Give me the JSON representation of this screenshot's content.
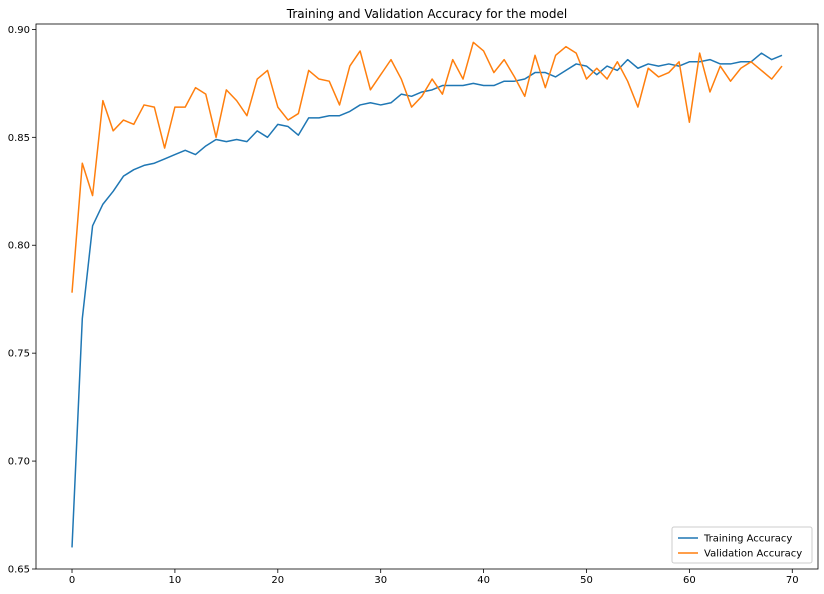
{
  "chart_data": {
    "type": "line",
    "title": "Training and Validation Accuracy for the model",
    "xlabel": "",
    "ylabel": "",
    "xlim": [
      -3.5,
      72.5
    ],
    "ylim": [
      0.65,
      0.9025
    ],
    "x_ticks": [
      0,
      10,
      20,
      30,
      40,
      50,
      60,
      70
    ],
    "y_ticks": [
      0.65,
      0.7,
      0.75,
      0.8,
      0.85,
      0.9
    ],
    "y_tick_labels": [
      "0.65",
      "0.70",
      "0.75",
      "0.80",
      "0.85",
      "0.90"
    ],
    "grid": false,
    "legend_position": "lower right",
    "series": [
      {
        "name": "Training Accuracy",
        "color": "#1f77b4",
        "values": [
          0.66,
          0.766,
          0.809,
          0.819,
          0.825,
          0.832,
          0.835,
          0.837,
          0.838,
          0.84,
          0.842,
          0.844,
          0.842,
          0.846,
          0.849,
          0.848,
          0.849,
          0.848,
          0.853,
          0.85,
          0.856,
          0.855,
          0.851,
          0.859,
          0.859,
          0.86,
          0.86,
          0.862,
          0.865,
          0.866,
          0.865,
          0.866,
          0.87,
          0.869,
          0.871,
          0.872,
          0.874,
          0.874,
          0.874,
          0.875,
          0.874,
          0.874,
          0.876,
          0.876,
          0.877,
          0.88,
          0.88,
          0.878,
          0.881,
          0.884,
          0.883,
          0.879,
          0.883,
          0.881,
          0.886,
          0.882,
          0.884,
          0.883,
          0.884,
          0.883,
          0.885,
          0.885,
          0.886,
          0.884,
          0.884,
          0.885,
          0.885,
          0.889,
          0.886,
          0.888
        ]
      },
      {
        "name": "Validation Accuracy",
        "color": "#ff7f0e",
        "values": [
          0.778,
          0.838,
          0.823,
          0.867,
          0.853,
          0.858,
          0.856,
          0.865,
          0.864,
          0.845,
          0.864,
          0.864,
          0.873,
          0.87,
          0.85,
          0.872,
          0.867,
          0.86,
          0.877,
          0.881,
          0.864,
          0.858,
          0.861,
          0.881,
          0.877,
          0.876,
          0.865,
          0.883,
          0.89,
          0.872,
          0.879,
          0.886,
          0.877,
          0.864,
          0.869,
          0.877,
          0.87,
          0.886,
          0.877,
          0.894,
          0.89,
          0.88,
          0.886,
          0.878,
          0.869,
          0.888,
          0.873,
          0.888,
          0.892,
          0.889,
          0.877,
          0.882,
          0.877,
          0.885,
          0.876,
          0.864,
          0.882,
          0.878,
          0.88,
          0.885,
          0.857,
          0.889,
          0.871,
          0.883,
          0.876,
          0.882,
          0.885,
          0.881,
          0.877,
          0.883
        ]
      }
    ]
  }
}
